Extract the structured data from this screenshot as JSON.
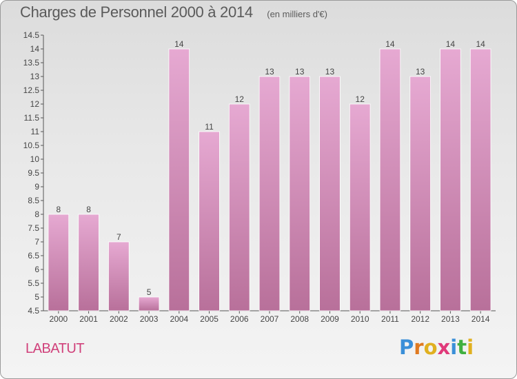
{
  "header": {
    "title": "Charges de Personnel 2000 à 2014",
    "subtitle": "(en milliers d'€)"
  },
  "footer": {
    "town": "LABATUT",
    "logo": {
      "letters": [
        "P",
        "r",
        "o",
        "x",
        "i",
        "t",
        "i"
      ],
      "colors": [
        "#3a8fd8",
        "#e07a20",
        "#e0b020",
        "#e03a7a",
        "#3a8fd8",
        "#40b040",
        "#e0b020"
      ]
    }
  },
  "chart_data": {
    "type": "bar",
    "title": "Charges de Personnel 2000 à 2014",
    "subtitle": "(en milliers d'€)",
    "categories": [
      "2000",
      "2001",
      "2002",
      "2003",
      "2004",
      "2005",
      "2006",
      "2007",
      "2008",
      "2009",
      "2010",
      "2011",
      "2012",
      "2013",
      "2014"
    ],
    "values": [
      8,
      8,
      7,
      5,
      14,
      11,
      12,
      13,
      13,
      13,
      12,
      14,
      13,
      14,
      14
    ],
    "value_labels": [
      "8",
      "8",
      "7",
      "5",
      "14",
      "11",
      "12",
      "13",
      "13",
      "13",
      "12",
      "14",
      "13",
      "14",
      "14"
    ],
    "ylim": [
      4.5,
      14.5
    ],
    "yticks": [
      "4.5",
      "5",
      "5.5",
      "6",
      "6.5",
      "7",
      "7.5",
      "8",
      "8.5",
      "9",
      "9.5",
      "10",
      "10.5",
      "11",
      "11.5",
      "12",
      "12.5",
      "13",
      "13.5",
      "14",
      "14.5"
    ],
    "grid": false,
    "colors": {
      "bar_top": "#e6a9d2",
      "bar_bottom": "#b8709a",
      "axis": "#555555"
    }
  }
}
